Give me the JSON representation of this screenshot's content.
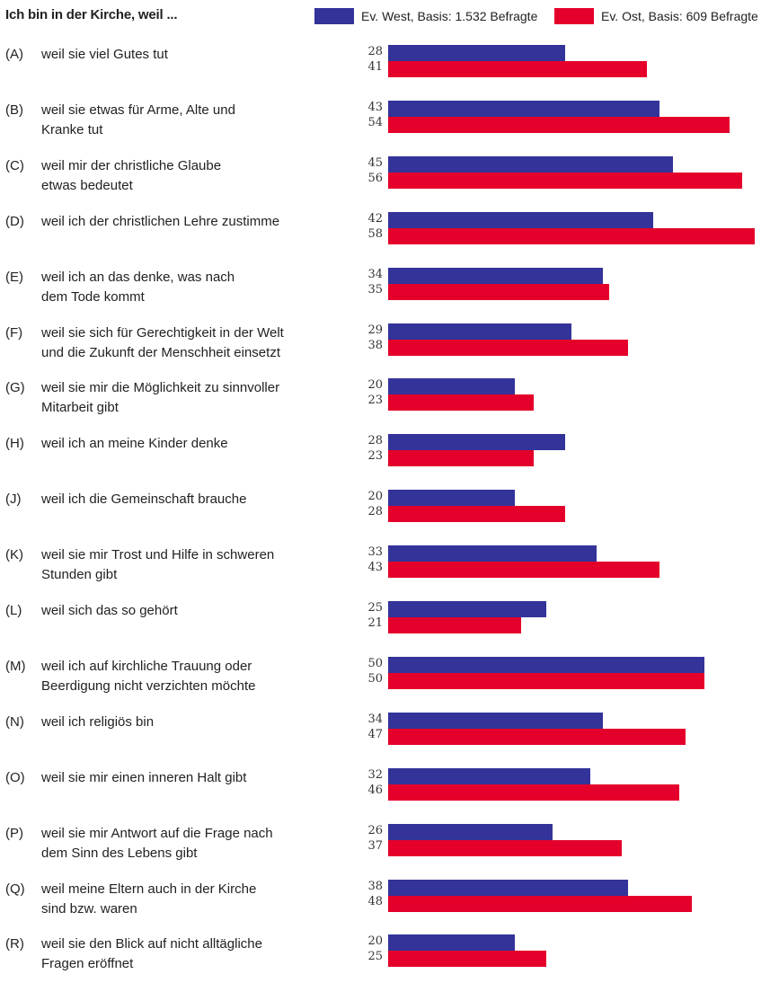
{
  "chart_data": {
    "type": "bar",
    "orientation": "horizontal",
    "title": "Ich bin in der Kirche, weil ...",
    "legend_placement": "top-right",
    "grid": false,
    "xlim": [
      0,
      58
    ],
    "categories": [
      {
        "code": "(A)",
        "label": "weil sie viel Gutes tut"
      },
      {
        "code": "(B)",
        "label": "weil sie etwas für Arme, Alte und\nKranke tut"
      },
      {
        "code": "(C)",
        "label": "weil mir der christliche Glaube\netwas bedeutet"
      },
      {
        "code": "(D)",
        "label": "weil ich der christlichen Lehre zustimme"
      },
      {
        "code": "(E)",
        "label": "weil ich an das denke, was nach\ndem Tode kommt"
      },
      {
        "code": "(F)",
        "label": "weil sie sich für Gerechtigkeit in der Welt\nund die Zukunft der Menschheit einsetzt"
      },
      {
        "code": "(G)",
        "label": "weil sie mir die Möglichkeit zu sinnvoller\nMitarbeit gibt"
      },
      {
        "code": "(H)",
        "label": "weil ich an meine Kinder denke"
      },
      {
        "code": "(J)",
        "label": "weil ich die Gemeinschaft brauche"
      },
      {
        "code": "(K)",
        "label": "weil sie mir Trost und Hilfe in schweren\nStunden gibt"
      },
      {
        "code": "(L)",
        "label": "weil sich das so gehört"
      },
      {
        "code": "(M)",
        "label": "weil ich auf kirchliche Trauung oder\nBeerdigung nicht verzichten möchte"
      },
      {
        "code": "(N)",
        "label": "weil ich religiös bin"
      },
      {
        "code": "(O)",
        "label": "weil sie mir einen inneren Halt gibt"
      },
      {
        "code": "(P)",
        "label": "weil sie mir Antwort auf die Frage nach\ndem Sinn des Lebens gibt"
      },
      {
        "code": "(Q)",
        "label": "weil meine Eltern auch in der Kirche\nsind bzw. waren"
      },
      {
        "code": "(R)",
        "label": "weil sie den Blick auf nicht alltägliche\nFragen eröffnet"
      }
    ],
    "series": [
      {
        "name": "Ev. West, Basis: 1.532 Befragte",
        "color": "#33339a",
        "values": [
          28,
          43,
          45,
          42,
          34,
          29,
          20,
          28,
          20,
          33,
          25,
          50,
          34,
          32,
          26,
          38,
          20
        ]
      },
      {
        "name": "Ev. Ost, Basis: 609 Befragte",
        "color": "#e4002b",
        "values": [
          41,
          54,
          56,
          58,
          35,
          38,
          23,
          23,
          28,
          43,
          21,
          50,
          47,
          46,
          37,
          48,
          25
        ]
      }
    ]
  }
}
